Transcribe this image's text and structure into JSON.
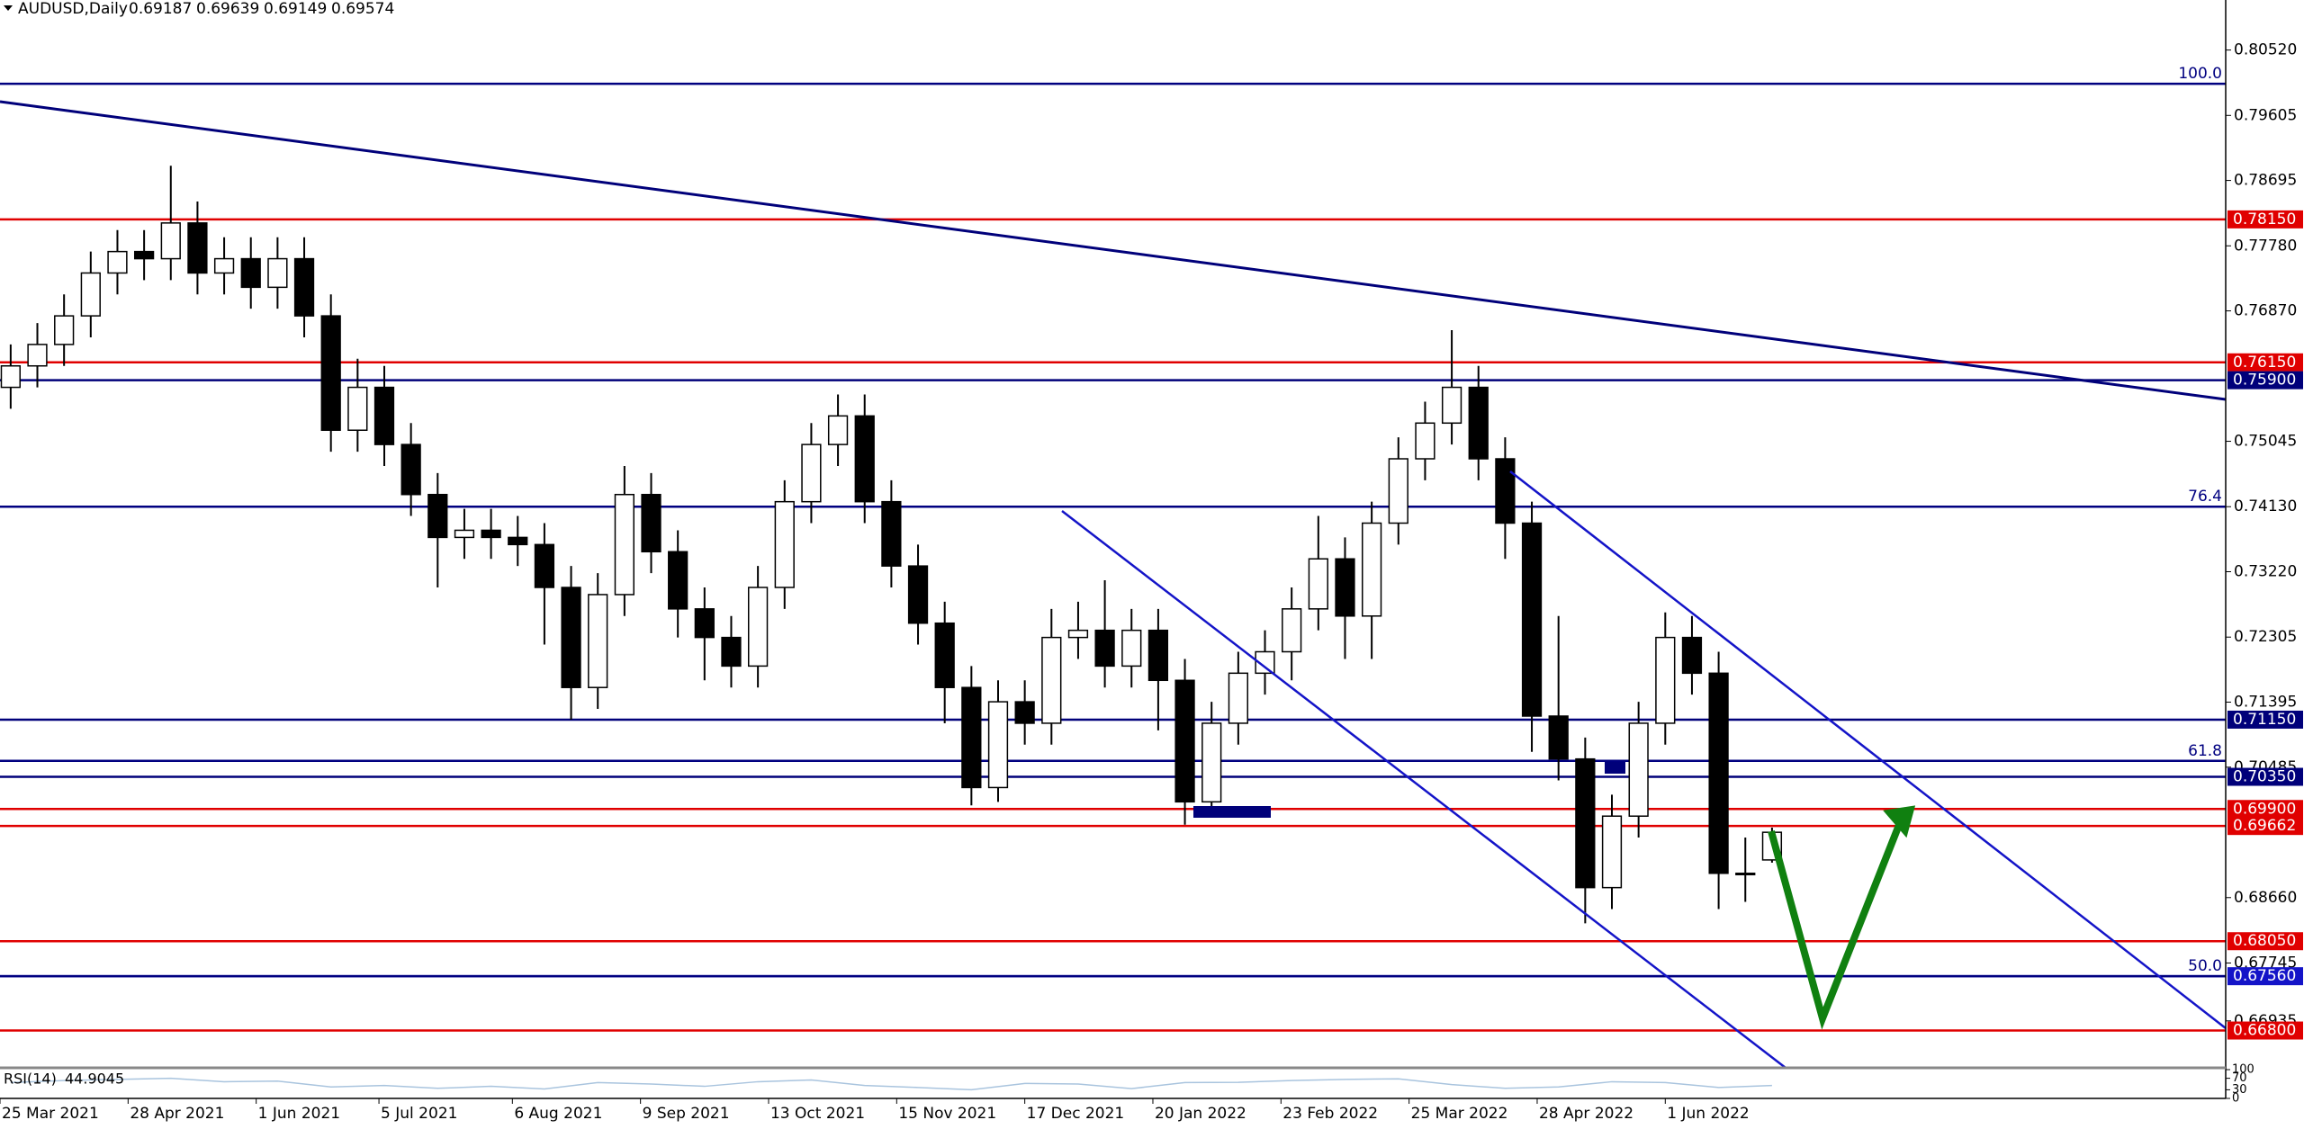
{
  "chart_data": {
    "type": "candlestick",
    "symbol": "AUDUSD,Daily",
    "x": [
      2,
      7,
      12,
      17,
      22,
      27,
      32,
      37,
      42,
      47,
      52,
      57,
      62,
      67,
      72,
      77,
      82,
      87,
      92,
      97,
      102,
      107,
      112,
      117,
      122,
      127,
      132,
      137,
      142,
      147,
      152,
      157,
      162,
      167,
      172,
      177,
      182,
      187,
      192,
      197,
      202,
      207,
      212,
      217,
      222,
      227,
      232,
      237,
      242,
      247,
      252,
      257,
      262,
      267,
      272,
      277,
      282,
      287,
      292,
      297,
      302,
      307,
      312,
      317,
      322,
      327,
      332
    ],
    "open": [
      0.758,
      0.761,
      0.764,
      0.768,
      0.774,
      0.777,
      0.776,
      0.781,
      0.774,
      0.776,
      0.772,
      0.776,
      0.768,
      0.752,
      0.758,
      0.75,
      0.743,
      0.737,
      0.738,
      0.737,
      0.736,
      0.73,
      0.716,
      0.729,
      0.743,
      0.735,
      0.727,
      0.723,
      0.719,
      0.73,
      0.742,
      0.75,
      0.754,
      0.742,
      0.733,
      0.725,
      0.716,
      0.702,
      0.714,
      0.711,
      0.723,
      0.724,
      0.719,
      0.724,
      0.717,
      0.7,
      0.711,
      0.718,
      0.721,
      0.727,
      0.734,
      0.726,
      0.739,
      0.748,
      0.753,
      0.758,
      0.748,
      0.739,
      0.712,
      0.706,
      0.688,
      0.698,
      0.711,
      0.723,
      0.718,
      0.69,
      0.69187
    ],
    "high": [
      0.764,
      0.767,
      0.771,
      0.777,
      0.78,
      0.78,
      0.789,
      0.784,
      0.779,
      0.779,
      0.779,
      0.779,
      0.771,
      0.762,
      0.761,
      0.753,
      0.746,
      0.741,
      0.741,
      0.74,
      0.739,
      0.733,
      0.732,
      0.747,
      0.746,
      0.738,
      0.73,
      0.726,
      0.733,
      0.745,
      0.753,
      0.757,
      0.757,
      0.745,
      0.736,
      0.728,
      0.719,
      0.717,
      0.717,
      0.727,
      0.728,
      0.731,
      0.727,
      0.727,
      0.72,
      0.714,
      0.721,
      0.724,
      0.73,
      0.74,
      0.737,
      0.742,
      0.751,
      0.756,
      0.766,
      0.761,
      0.751,
      0.742,
      0.726,
      0.709,
      0.701,
      0.714,
      0.7265,
      0.726,
      0.721,
      0.695,
      0.69639
    ],
    "low": [
      0.755,
      0.758,
      0.761,
      0.765,
      0.771,
      0.773,
      0.773,
      0.771,
      0.771,
      0.769,
      0.769,
      0.765,
      0.749,
      0.749,
      0.747,
      0.74,
      0.73,
      0.734,
      0.734,
      0.733,
      0.722,
      0.7115,
      0.713,
      0.726,
      0.732,
      0.723,
      0.717,
      0.716,
      0.716,
      0.727,
      0.739,
      0.747,
      0.739,
      0.73,
      0.722,
      0.711,
      0.6995,
      0.7,
      0.708,
      0.708,
      0.72,
      0.716,
      0.716,
      0.71,
      0.6968,
      0.698,
      0.708,
      0.715,
      0.717,
      0.724,
      0.72,
      0.72,
      0.736,
      0.745,
      0.75,
      0.745,
      0.734,
      0.707,
      0.703,
      0.683,
      0.685,
      0.695,
      0.708,
      0.715,
      0.685,
      0.686,
      0.69149
    ],
    "close": [
      0.761,
      0.764,
      0.768,
      0.774,
      0.777,
      0.776,
      0.781,
      0.774,
      0.776,
      0.772,
      0.776,
      0.768,
      0.752,
      0.758,
      0.75,
      0.743,
      0.737,
      0.738,
      0.737,
      0.736,
      0.73,
      0.716,
      0.729,
      0.743,
      0.735,
      0.727,
      0.723,
      0.719,
      0.73,
      0.742,
      0.75,
      0.754,
      0.742,
      0.733,
      0.725,
      0.716,
      0.702,
      0.714,
      0.711,
      0.723,
      0.724,
      0.719,
      0.724,
      0.717,
      0.7,
      0.711,
      0.718,
      0.721,
      0.727,
      0.734,
      0.726,
      0.739,
      0.748,
      0.753,
      0.758,
      0.748,
      0.739,
      0.712,
      0.706,
      0.688,
      0.698,
      0.711,
      0.723,
      0.718,
      0.69,
      0.69,
      0.69574
    ],
    "up_color": "#ffffff",
    "down_color": "#000000",
    "xlim": [
      0,
      417
    ],
    "xticks": [
      {
        "value": 0,
        "label": "25 Mar 2021"
      },
      {
        "value": 24,
        "label": "28 Apr 2021"
      },
      {
        "value": 48,
        "label": "1 Jun 2021"
      },
      {
        "value": 71,
        "label": "5 Jul 2021"
      },
      {
        "value": 96,
        "label": "6 Aug 2021"
      },
      {
        "value": 120,
        "label": "9 Sep 2021"
      },
      {
        "value": 144,
        "label": "13 Oct 2021"
      },
      {
        "value": 168,
        "label": "15 Nov 2021"
      },
      {
        "value": 192,
        "label": "17 Dec 2021"
      },
      {
        "value": 216,
        "label": "20 Jan 2022"
      },
      {
        "value": 240,
        "label": "23 Feb 2022"
      },
      {
        "value": 264,
        "label": "25 Mar 2022"
      },
      {
        "value": 288,
        "label": "28 Apr 2022"
      },
      {
        "value": 312,
        "label": "1 Jun 2022"
      }
    ],
    "ylim": [
      0.66278,
      0.8122
    ],
    "yticks": [
      {
        "value": 0.8052,
        "label": "0.80520"
      },
      {
        "value": 0.79605,
        "label": "0.79605"
      },
      {
        "value": 0.78695,
        "label": "0.78695"
      },
      {
        "value": 0.7778,
        "label": "0.77780"
      },
      {
        "value": 0.7687,
        "label": "0.76870"
      },
      {
        "value": 0.75045,
        "label": "0.75045"
      },
      {
        "value": 0.7413,
        "label": "0.74130"
      },
      {
        "value": 0.7322,
        "label": "0.73220"
      },
      {
        "value": 0.72305,
        "label": "0.72305"
      },
      {
        "value": 0.71395,
        "label": "0.71395"
      },
      {
        "value": 0.70485,
        "label": "0.70485"
      },
      {
        "value": 0.6866,
        "label": "0.68660"
      },
      {
        "value": 0.67745,
        "label": "0.67745"
      },
      {
        "value": 0.66935,
        "label": "0.66935"
      }
    ],
    "levels": [
      {
        "value": 0.7815,
        "label": "0.78150",
        "color": "#e00000"
      },
      {
        "value": 0.7615,
        "label": "0.76150",
        "color": "#e00000"
      },
      {
        "value": 0.759,
        "label": "0.75900",
        "color": "#00007a"
      },
      {
        "value": 0.7115,
        "label": "0.71150",
        "color": "#00007a"
      },
      {
        "value": 0.7035,
        "label": "0.70350",
        "color": "#00007a"
      },
      {
        "value": 0.699,
        "label": "0.69900",
        "color": "#e00000"
      },
      {
        "value": 0.69662,
        "label": "0.69662",
        "color": "#e00000"
      },
      {
        "value": 0.6805,
        "label": "0.68050",
        "color": "#e00000"
      },
      {
        "value": 0.6756,
        "label": "0.67560",
        "color": "#1414c8"
      },
      {
        "value": 0.668,
        "label": "0.66800",
        "color": "#e00000"
      }
    ],
    "fib_levels": [
      {
        "value": 0.80047,
        "label": "100.0"
      },
      {
        "value": 0.7413,
        "label": "76.4"
      },
      {
        "value": 0.70573,
        "label": "61.8"
      },
      {
        "value": 0.6756,
        "label": "50.0"
      }
    ],
    "fib_color": "#000080",
    "rsi": {
      "name": "RSI(14)",
      "value": 44.9045,
      "color": "#a9c4de",
      "ylim": [
        0,
        100
      ],
      "yticks": [
        0,
        30,
        70,
        100
      ],
      "x": [
        2,
        12,
        22,
        32,
        42,
        52,
        62,
        72,
        82,
        92,
        102,
        112,
        122,
        132,
        142,
        152,
        162,
        172,
        182,
        192,
        202,
        212,
        222,
        232,
        242,
        252,
        262,
        272,
        282,
        292,
        302,
        312,
        322,
        332
      ],
      "values": [
        55,
        62,
        66,
        70,
        58,
        60,
        40,
        45,
        35,
        42,
        33,
        55,
        50,
        42,
        58,
        64,
        45,
        38,
        30,
        52,
        50,
        34,
        55,
        56,
        62,
        66,
        68,
        48,
        35,
        40,
        58,
        55,
        38,
        45
      ]
    }
  }
}
